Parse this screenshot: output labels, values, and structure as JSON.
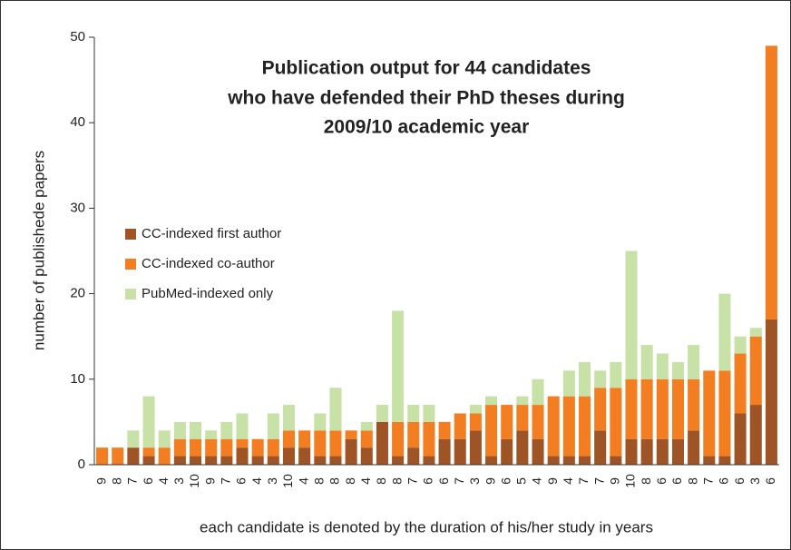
{
  "chart_data": {
    "type": "stacked_bar",
    "title": [
      "Publication output for 44 candidates",
      "who have defended their PhD theses during",
      "2009/10 academic year"
    ],
    "x_label": "each candidate is denoted by the duration of his/her study in years",
    "y_label": "number of publishede papers",
    "categories": [
      "9",
      "8",
      "7",
      "6",
      "4",
      "3",
      "10",
      "9",
      "7",
      "6",
      "4",
      "3",
      "10",
      "4",
      "8",
      "8",
      "8",
      "4",
      "8",
      "8",
      "7",
      "6",
      "6",
      "7",
      "3",
      "9",
      "6",
      "5",
      "4",
      "9",
      "4",
      "7",
      "7",
      "9",
      "10",
      "8",
      "6",
      "6",
      "8",
      "7",
      "6",
      "6",
      "3",
      "6"
    ],
    "series": [
      {
        "name": "CC-indexed first author",
        "color": "#9e5424",
        "values": [
          0,
          0,
          2,
          1,
          0,
          1,
          1,
          1,
          1,
          2,
          1,
          1,
          2,
          2,
          1,
          1,
          3,
          2,
          5,
          1,
          2,
          1,
          3,
          3,
          4,
          1,
          3,
          4,
          3,
          1,
          1,
          1,
          4,
          1,
          3,
          3,
          3,
          3,
          4,
          1,
          1,
          6,
          7,
          17
        ]
      },
      {
        "name": "CC-indexed co-author",
        "color": "#f37e22",
        "values": [
          2,
          2,
          0,
          1,
          2,
          2,
          2,
          2,
          2,
          1,
          2,
          2,
          2,
          2,
          3,
          3,
          1,
          2,
          0,
          4,
          3,
          4,
          2,
          3,
          2,
          6,
          4,
          3,
          4,
          7,
          7,
          7,
          5,
          8,
          7,
          7,
          7,
          7,
          6,
          10,
          10,
          7,
          8,
          32
        ]
      },
      {
        "name": "PubMed-indexed only",
        "color": "#c7e1a6",
        "values": [
          0,
          0,
          2,
          6,
          2,
          2,
          2,
          1,
          2,
          3,
          0,
          3,
          3,
          0,
          2,
          5,
          0,
          1,
          2,
          13,
          2,
          2,
          0,
          0,
          1,
          1,
          0,
          1,
          3,
          0,
          3,
          4,
          2,
          3,
          15,
          4,
          3,
          2,
          4,
          0,
          9,
          2,
          1,
          0
        ]
      }
    ],
    "ylim": [
      0,
      50
    ],
    "yticks": [
      0,
      10,
      20,
      30,
      40,
      50
    ]
  }
}
